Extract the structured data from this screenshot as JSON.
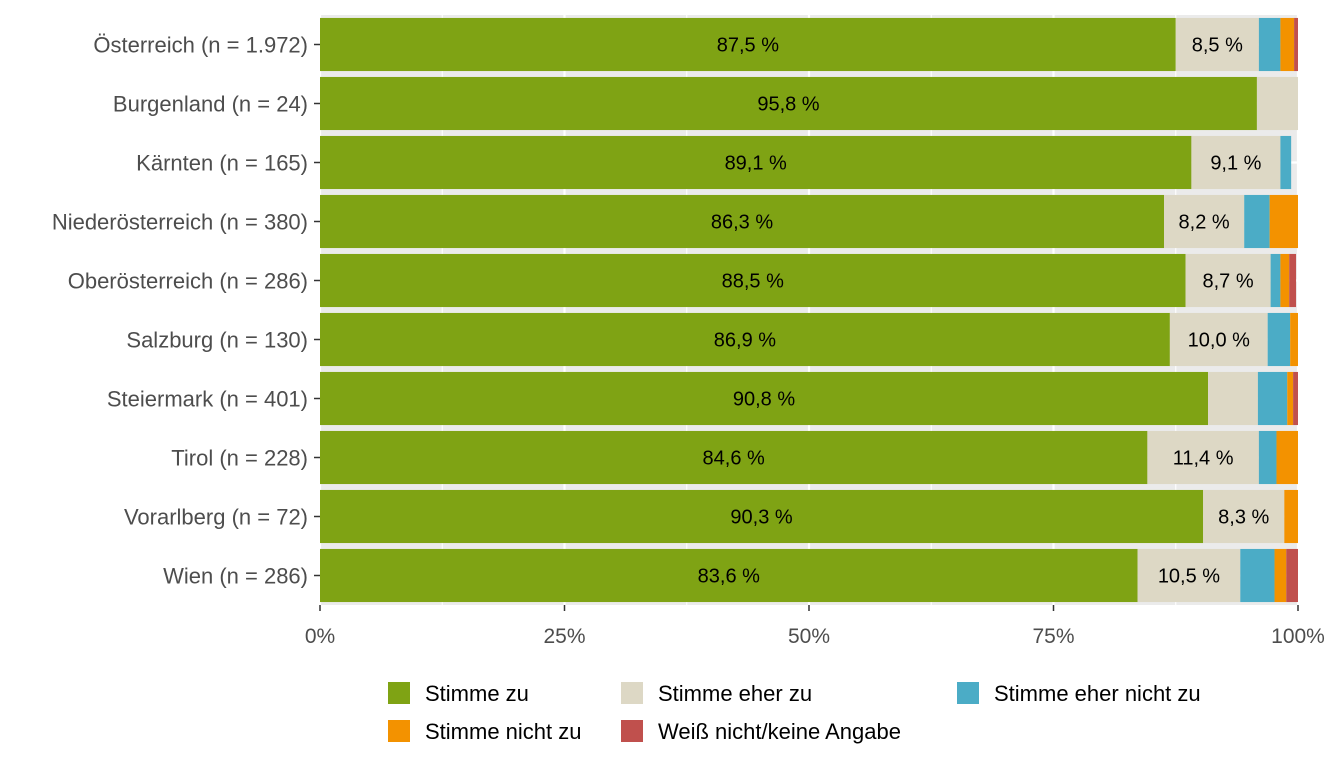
{
  "chart_data": {
    "type": "bar",
    "orientation": "horizontal",
    "stacked": true,
    "categories": [
      "Österreich (n = 1.972)",
      "Burgenland (n = 24)",
      "Kärnten (n = 165)",
      "Niederösterreich (n = 380)",
      "Oberösterreich (n = 286)",
      "Salzburg (n = 130)",
      "Steiermark (n = 401)",
      "Tirol (n = 228)",
      "Vorarlberg (n = 72)",
      "Wien (n = 286)"
    ],
    "series": [
      {
        "name": "Stimme zu",
        "color": "#7fa314",
        "values": [
          87.5,
          95.8,
          89.1,
          86.3,
          88.5,
          86.9,
          90.8,
          84.6,
          90.3,
          83.6
        ],
        "labels": [
          "87,5 %",
          "95,8 %",
          "89,1 %",
          "86,3 %",
          "88,5 %",
          "86,9 %",
          "90,8 %",
          "84,6 %",
          "90,3 %",
          "83,6 %"
        ]
      },
      {
        "name": "Stimme eher zu",
        "color": "#ddd8c5",
        "values": [
          8.5,
          4.2,
          9.1,
          8.2,
          8.7,
          10.0,
          5.1,
          11.4,
          8.3,
          10.5
        ],
        "labels": [
          "8,5 %",
          "",
          "9,1 %",
          "8,2 %",
          "8,7 %",
          "10,0 %",
          "",
          "11,4 %",
          "8,3 %",
          "10,5 %"
        ]
      },
      {
        "name": "Stimme eher nicht zu",
        "color": "#4bacc6",
        "values": [
          2.2,
          0,
          1.1,
          2.6,
          1.0,
          2.3,
          3.0,
          1.8,
          0,
          3.5
        ],
        "labels": [
          "",
          "",
          "",
          "",
          "",
          "",
          "",
          "",
          "",
          ""
        ]
      },
      {
        "name": "Stimme nicht zu",
        "color": "#f39200",
        "values": [
          1.4,
          0,
          0,
          2.9,
          0.9,
          0.8,
          0.6,
          2.2,
          1.4,
          1.2
        ],
        "labels": [
          "",
          "",
          "",
          "",
          "",
          "",
          "",
          "",
          "",
          ""
        ]
      },
      {
        "name": "Weiß nicht/keine Angabe",
        "color": "#c0504d",
        "values": [
          0.4,
          0,
          0,
          0,
          0.7,
          0,
          0.5,
          0,
          0,
          1.2
        ],
        "labels": [
          "",
          "",
          "",
          "",
          "",
          "",
          "",
          "",
          "",
          ""
        ]
      }
    ],
    "x_ticks": [
      "0%",
      "25%",
      "50%",
      "75%",
      "100%"
    ],
    "x_tick_values": [
      0,
      25,
      50,
      75,
      100
    ],
    "xlim": [
      0,
      100
    ],
    "title": "",
    "xlabel": "",
    "ylabel": "",
    "grid": true,
    "legend_position": "bottom",
    "colors": {
      "panel_background": "#ebebeb",
      "gridline": "#ffffff",
      "text": "#4d4d4d"
    }
  }
}
